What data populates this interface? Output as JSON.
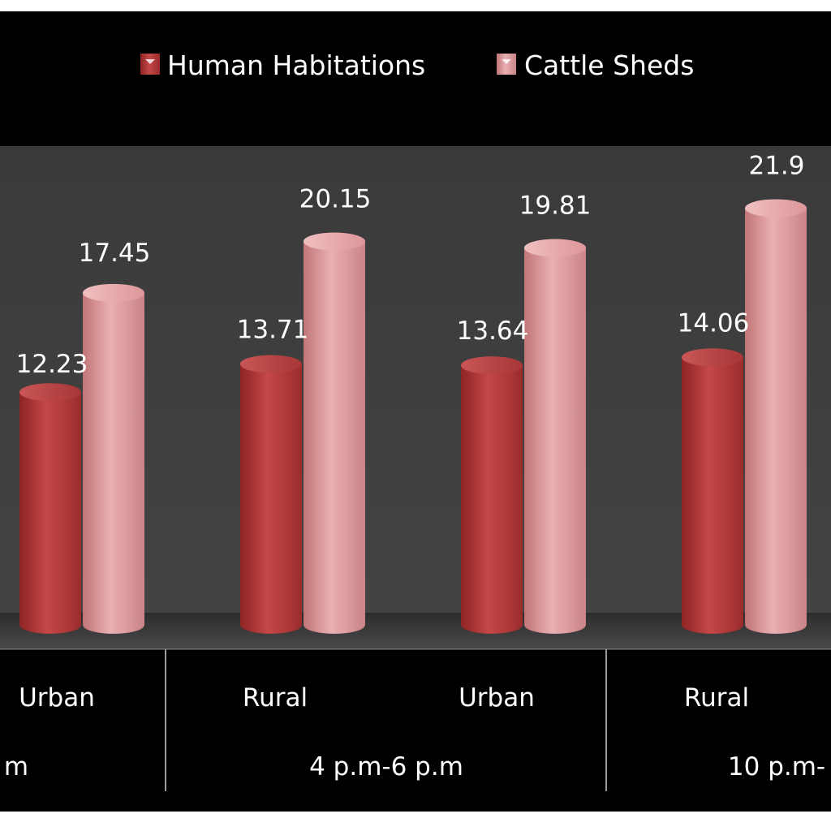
{
  "chart_data": {
    "type": "bar",
    "categories": [
      "Urban",
      "Rural",
      "Urban",
      "Rural"
    ],
    "groups": [
      {
        "label": "m",
        "start": 0,
        "end": 0
      },
      {
        "label": "4 p.m-6 p.m",
        "start": 1,
        "end": 2
      },
      {
        "label": "10 p.m-",
        "start": 3,
        "end": 3
      }
    ],
    "series": [
      {
        "name": "Human Habitations",
        "values": [
          12.23,
          13.71,
          13.64,
          14.06
        ],
        "value_labels": [
          "12.23",
          "13.71",
          "13.64",
          "14.06"
        ]
      },
      {
        "name": "Cattle Sheds",
        "values": [
          17.45,
          20.15,
          19.81,
          21.9
        ],
        "value_labels": [
          "17.45",
          "20.15",
          "19.81",
          "21.9"
        ]
      }
    ],
    "title": "",
    "xlabel": "",
    "ylabel": "",
    "ylim": [
      0,
      25
    ],
    "grid": false,
    "legend": "top",
    "style": "3d-cylinder",
    "colors": {
      "Human Habitations": "#b13a3a",
      "Cattle Sheds": "#dc9395",
      "plot_background": "#3c3c3c",
      "frame_background": "#000000"
    }
  }
}
